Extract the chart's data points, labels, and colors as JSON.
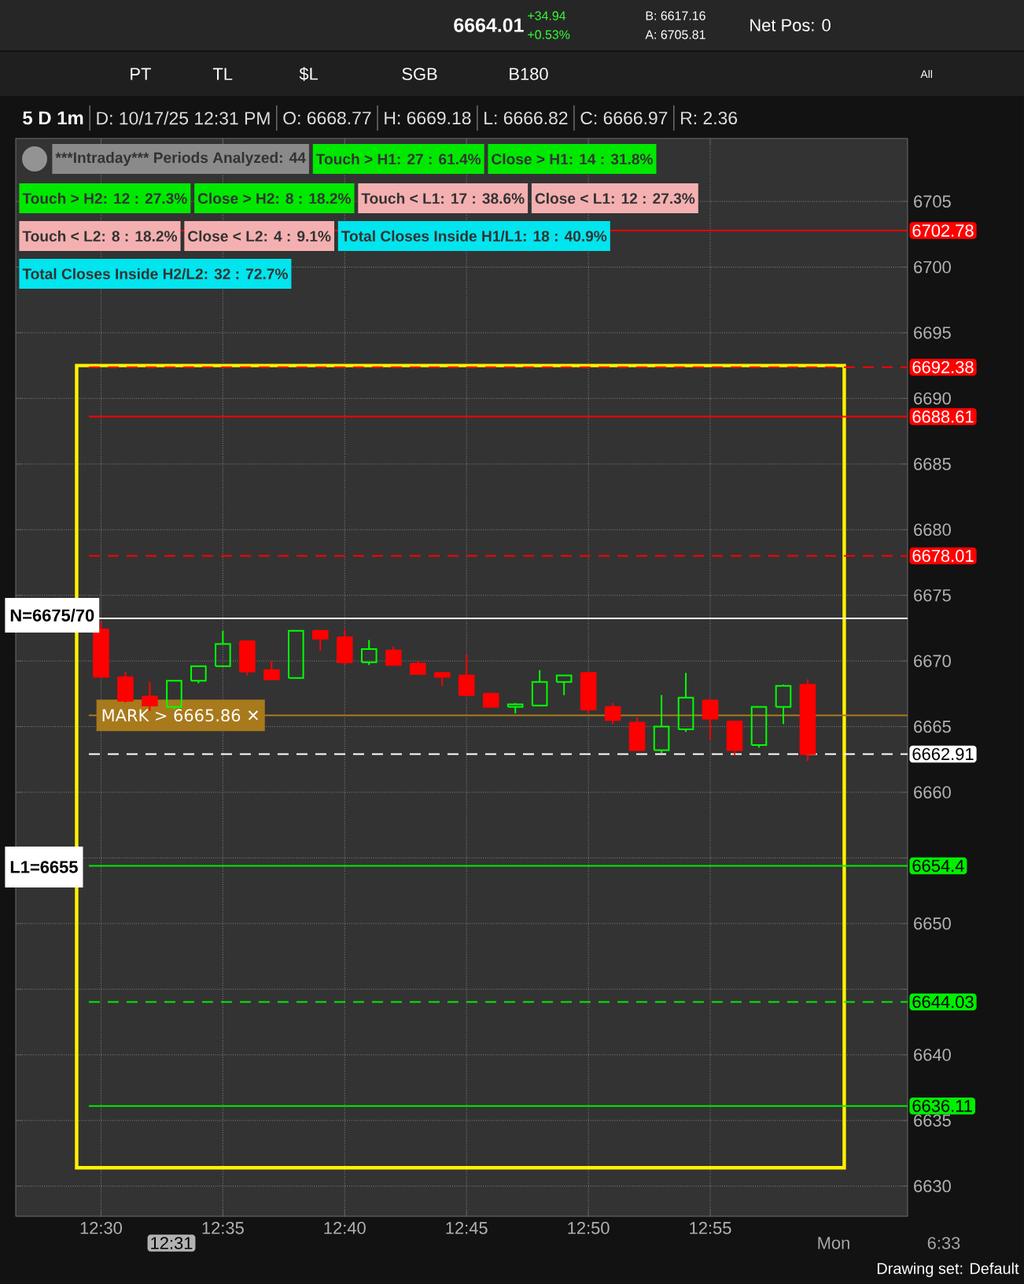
{
  "chart_data": {
    "type": "candlestick",
    "title": "5 D 1m",
    "categories": [
      "12:30",
      null,
      null,
      null,
      null,
      "12:35",
      null,
      null,
      null,
      null,
      "12:40",
      null,
      null,
      null,
      null,
      "12:45",
      null,
      null,
      null,
      null,
      "12:50",
      null,
      null,
      null,
      null,
      "12:55",
      null,
      null,
      null,
      null
    ],
    "ohlc": [
      [
        6672.4,
        6673.0,
        6668.8,
        6668.8
      ],
      [
        6668.77,
        6669.18,
        6666.82,
        6666.97
      ],
      [
        6667.3,
        6668.4,
        6666.2,
        6666.6
      ],
      [
        6666.5,
        6668.5,
        6666.3,
        6668.5
      ],
      [
        6668.5,
        6669.6,
        6668.3,
        6669.6
      ],
      [
        6669.6,
        6672.3,
        6669.6,
        6671.3
      ],
      [
        6671.5,
        6671.5,
        6668.9,
        6669.2
      ],
      [
        6669.3,
        6670.0,
        6668.6,
        6668.6
      ],
      [
        6668.7,
        6672.3,
        6668.7,
        6672.3
      ],
      [
        6672.3,
        6672.3,
        6670.8,
        6671.7
      ],
      [
        6671.8,
        6672.4,
        6669.7,
        6669.9
      ],
      [
        6669.9,
        6671.6,
        6669.7,
        6670.9
      ],
      [
        6670.8,
        6671.1,
        6669.7,
        6669.7
      ],
      [
        6669.8,
        6670.0,
        6669.0,
        6669.0
      ],
      [
        6669.1,
        6669.1,
        6668.1,
        6668.8
      ],
      [
        6668.9,
        6670.5,
        6667.4,
        6667.4
      ],
      [
        6667.5,
        6667.6,
        6666.5,
        6666.5
      ],
      [
        6666.5,
        6666.8,
        6666.0,
        6666.7
      ],
      [
        6666.6,
        6669.3,
        6666.6,
        6668.4
      ],
      [
        6668.4,
        6668.9,
        6667.4,
        6668.9
      ],
      [
        6669.1,
        6669.1,
        6666.0,
        6666.3
      ],
      [
        6666.5,
        6666.8,
        6665.2,
        6665.5
      ],
      [
        6665.3,
        6665.7,
        6663.2,
        6663.2
      ],
      [
        6663.2,
        6667.4,
        6663.0,
        6665.0
      ],
      [
        6664.8,
        6669.1,
        6664.6,
        6667.2
      ],
      [
        6667.0,
        6667.0,
        6664.0,
        6665.6
      ],
      [
        6665.4,
        6665.4,
        6662.8,
        6663.2
      ],
      [
        6663.6,
        6666.5,
        6663.4,
        6666.5
      ],
      [
        6666.5,
        6668.2,
        6665.2,
        6668.1
      ],
      [
        6668.2,
        6668.6,
        6662.4,
        6662.91
      ]
    ],
    "colors": [
      "#ff0000",
      "#ff0000",
      "#ff0000",
      "#00ff00",
      "#00ff00",
      "#00ff00",
      "#ff0000",
      "#ff0000",
      "#00ff00",
      "#ff0000",
      "#ff0000",
      "#00ff00",
      "#ff0000",
      "#ff0000",
      "#ff0000",
      "#ff0000",
      "#ff0000",
      "#00ff00",
      "#00ff00",
      "#00ff00",
      "#ff0000",
      "#ff0000",
      "#ff0000",
      "#00ff00",
      "#00ff00",
      "#ff0000",
      "#ff0000",
      "#00ff00",
      "#00ff00",
      "#ff0000"
    ],
    "ylim": [
      6627.7,
      6709.8
    ],
    "yticks": [
      6630,
      6635,
      6640,
      {
        "value": 6645,
        "label": null
      },
      6650,
      {
        "value": 6655,
        "label": null
      },
      6660,
      6665,
      6670,
      6675,
      6680,
      6685,
      6690,
      6695,
      6700,
      6705
    ],
    "grid": true,
    "ref_lines": [
      {
        "axis": "y",
        "value": 6702.78,
        "label": "6702.78",
        "color": "#ff0000",
        "line_style": "solid"
      },
      {
        "axis": "y",
        "value": 6692.38,
        "label": "6692.38",
        "color": "#ff0000",
        "line_style": "dashed"
      },
      {
        "axis": "y",
        "value": 6688.61,
        "label": "6688.61",
        "color": "#ff0000",
        "line_style": "solid"
      },
      {
        "axis": "y",
        "value": 6678.01,
        "label": "6678.01",
        "color": "#ff0000",
        "line_style": "dashed"
      },
      {
        "axis": "y",
        "value": 6673.25,
        "color": "#ffffff",
        "line_style": "solid"
      },
      {
        "axis": "y",
        "value": 6665.86,
        "label": "MARK > 6665.86 ✕",
        "color": "#a87a1c",
        "line_style": "solid"
      },
      {
        "axis": "y",
        "value": 6662.91,
        "label": "6662.91",
        "color": "#ffffff",
        "line_style": "dashed"
      },
      {
        "axis": "y",
        "value": 6654.4,
        "label": "6654.4",
        "color": "#00ee00",
        "line_style": "solid"
      },
      {
        "axis": "y",
        "value": 6644.03,
        "label": "6644.03",
        "color": "#00ee00",
        "line_style": "dashed"
      },
      {
        "axis": "y",
        "value": 6636.11,
        "label": "6636.11",
        "color": "#00ee00",
        "line_style": "solid"
      }
    ],
    "annotations": [
      "6664.01",
      "+34.94",
      "+0.53%",
      "B: 6617.16",
      "A: 6705.81",
      "Net Pos: 0",
      "PT",
      "TL",
      "$L",
      "SGB",
      "B180",
      "All",
      "D: 10/17/25 12:31 PM",
      "O: 6668.77",
      "H: 6669.18",
      "L: 6666.82",
      "C: 6666.97",
      "R: 2.36",
      "***Intraday*** Periods Analyzed: 44",
      "Touch > H1: 27 : 61.4%",
      "Close > H1: 14 : 31.8%",
      "Touch > H2: 12 : 27.3%",
      "Close > H2: 8 : 18.2%",
      "Touch < L1: 17 : 38.6%",
      "Close < L1: 12 : 27.3%",
      "Touch < L2: 8 : 18.2%",
      "Close < L2: 4 : 9.1%",
      "Total Closes Inside H1/L1: 18 : 40.9%",
      "Total Closes Inside H2/L2: 32 : 72.7%",
      "12:31",
      "Mon",
      "6:33",
      "Drawing set: Default",
      "N=6675/70",
      "L1=6655"
    ]
  }
}
